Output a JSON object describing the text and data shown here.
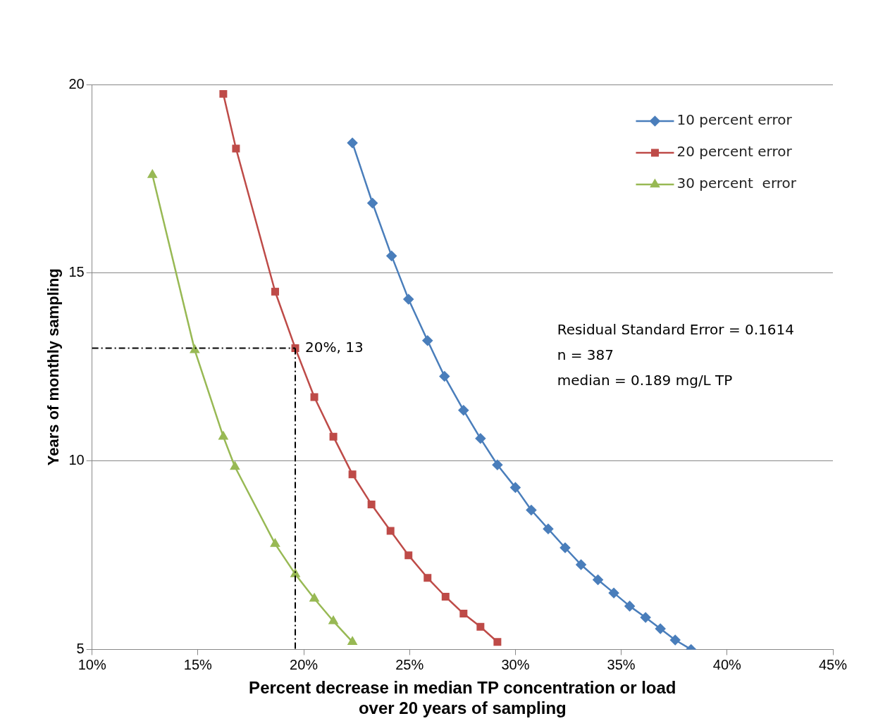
{
  "chart_data": {
    "type": "line",
    "xlabel": "Percent decrease in median TP concentration or load\nover 20 years of sampling",
    "ylabel": "Years of monthly sampling",
    "xlim": [
      10,
      45
    ],
    "xticks": [
      {
        "value": 10,
        "label": "10%"
      },
      {
        "value": 15,
        "label": "15%"
      },
      {
        "value": 20,
        "label": "20%"
      },
      {
        "value": 25,
        "label": "25%"
      },
      {
        "value": 30,
        "label": "30%"
      },
      {
        "value": 35,
        "label": "35%"
      },
      {
        "value": 40,
        "label": "40%"
      },
      {
        "value": 45,
        "label": "45%"
      }
    ],
    "ylim": [
      5,
      20
    ],
    "yticks": [
      5,
      10,
      15,
      20
    ],
    "grid": "y",
    "legend": "top right",
    "line_style": "solid",
    "series": [
      {
        "name": "10 percent error",
        "color": "#4a7ebb",
        "marker": "diamond",
        "x": [
          22.3,
          23.25,
          24.15,
          24.95,
          25.85,
          26.65,
          27.55,
          28.35,
          29.15,
          30.0,
          30.75,
          31.55,
          32.35,
          33.1,
          33.9,
          34.65,
          35.4,
          36.15,
          36.85,
          37.55,
          38.3
        ],
        "values": [
          18.45,
          16.85,
          15.45,
          14.3,
          13.2,
          12.25,
          11.35,
          10.6,
          9.9,
          9.3,
          8.7,
          8.2,
          7.7,
          7.25,
          6.85,
          6.5,
          6.15,
          5.85,
          5.55,
          5.25,
          5.0
        ]
      },
      {
        "name": "20 percent error",
        "color": "#be4b48",
        "marker": "square",
        "x": [
          16.2,
          16.8,
          18.65,
          19.6,
          20.5,
          21.4,
          22.3,
          23.2,
          24.1,
          24.95,
          25.85,
          26.7,
          27.55,
          28.35,
          29.15
        ],
        "values": [
          19.75,
          18.3,
          14.5,
          13.0,
          11.7,
          10.65,
          9.65,
          8.85,
          8.15,
          7.5,
          6.9,
          6.4,
          5.95,
          5.6,
          5.2
        ]
      },
      {
        "name": "30 percent  error",
        "color": "#98b954",
        "marker": "triangle",
        "x": [
          12.85,
          14.85,
          16.2,
          16.75,
          18.65,
          19.6,
          20.5,
          21.4,
          22.3
        ],
        "values": [
          17.6,
          12.95,
          10.65,
          9.85,
          7.8,
          7.0,
          6.35,
          5.75,
          5.2
        ]
      }
    ],
    "annotations": [
      {
        "text": "20%, 13",
        "x": 19.6,
        "y": 13.0
      },
      "Residual Standard Error = 0.1614",
      "n = 387",
      "median = 0.189 mg/L TP"
    ]
  }
}
